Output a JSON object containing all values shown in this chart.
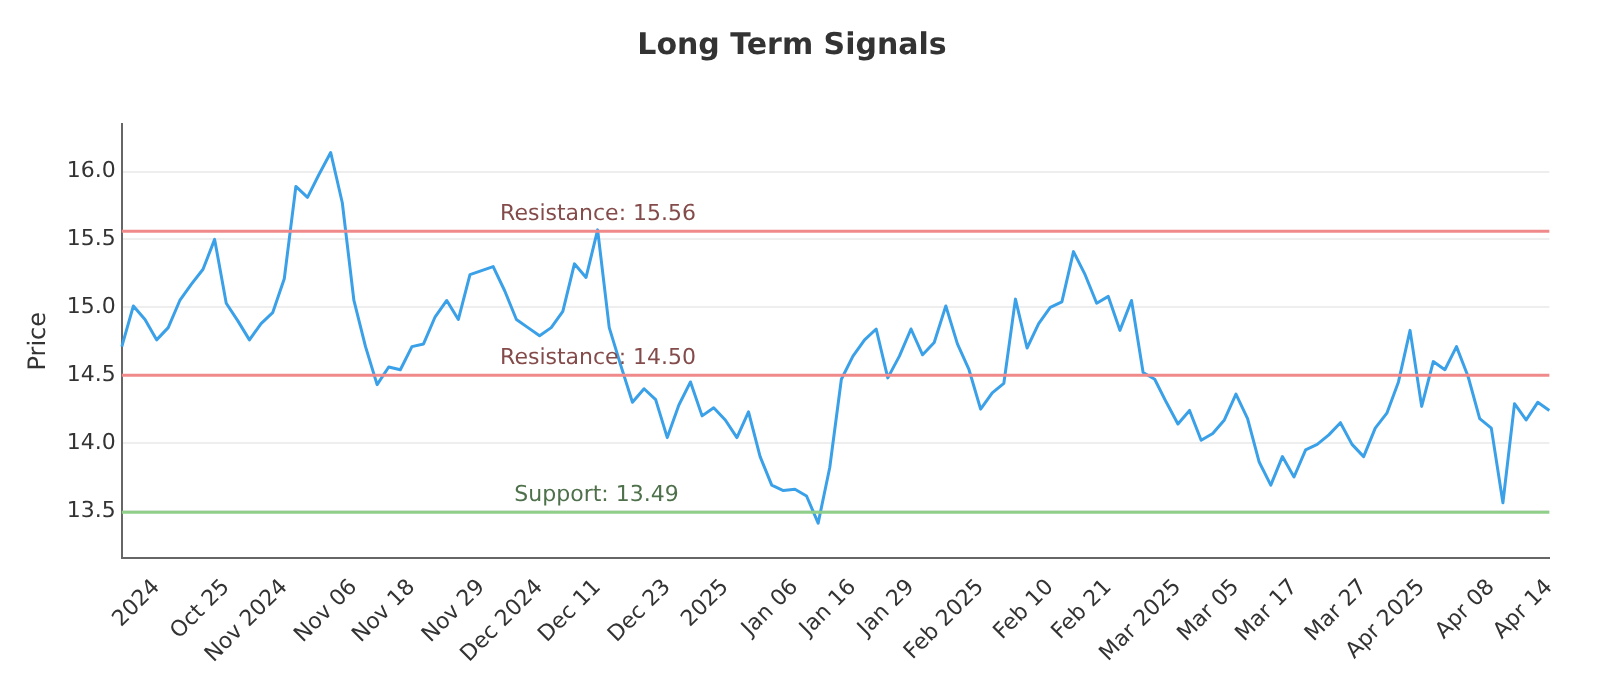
{
  "chart_data": {
    "type": "line",
    "title": "Long Term Signals",
    "ylabel": "Price",
    "categories": [
      null,
      null,
      null,
      "2024",
      null,
      null,
      null,
      null,
      null,
      "Oct 25",
      null,
      null,
      null,
      null,
      "Nov 2024",
      null,
      null,
      null,
      null,
      null,
      "Nov 06",
      null,
      null,
      null,
      null,
      "Nov 18",
      null,
      null,
      null,
      null,
      null,
      "Nov 29",
      null,
      null,
      null,
      null,
      "Dec 2024",
      null,
      null,
      null,
      null,
      "Dec 11",
      null,
      null,
      null,
      null,
      null,
      "Dec 23",
      null,
      null,
      null,
      null,
      "2025",
      null,
      null,
      null,
      null,
      null,
      "Jan 06",
      null,
      null,
      null,
      null,
      "Jan 16",
      null,
      null,
      null,
      null,
      "Jan 29",
      null,
      null,
      null,
      null,
      null,
      "Feb 2025",
      null,
      null,
      null,
      null,
      null,
      "Feb 10",
      null,
      null,
      null,
      null,
      "Feb 21",
      null,
      null,
      null,
      null,
      null,
      "Mar 2025",
      null,
      null,
      null,
      null,
      "Mar 05",
      null,
      null,
      null,
      null,
      "Mar 17",
      null,
      null,
      null,
      null,
      null,
      "Mar 27",
      null,
      null,
      null,
      null,
      "Apr 2025",
      null,
      null,
      null,
      null,
      null,
      "Apr 08",
      null,
      null,
      null,
      null,
      "Apr 14"
    ],
    "series": [
      {
        "color": "#3aa0e8",
        "values": [
          14.71,
          15.01,
          14.91,
          14.76,
          14.85,
          15.05,
          15.17,
          15.28,
          15.5,
          15.03,
          14.9,
          14.76,
          14.88,
          14.96,
          15.21,
          15.89,
          15.81,
          15.98,
          16.14,
          15.77,
          15.05,
          14.71,
          14.43,
          14.56,
          14.54,
          14.71,
          14.73,
          14.93,
          15.05,
          14.91,
          15.24,
          15.27,
          15.3,
          15.12,
          14.91,
          14.85,
          14.79,
          14.85,
          14.97,
          15.32,
          15.22,
          15.57,
          14.85,
          14.57,
          14.3,
          14.4,
          14.32,
          14.04,
          14.28,
          14.45,
          14.2,
          14.26,
          14.17,
          14.04,
          14.23,
          13.9,
          13.69,
          13.65,
          13.66,
          13.61,
          13.41,
          13.82,
          14.47,
          14.64,
          14.76,
          14.84,
          14.48,
          14.64,
          14.84,
          14.65,
          14.74,
          15.01,
          14.73,
          14.54,
          14.25,
          14.37,
          14.44,
          15.06,
          14.7,
          14.88,
          15.0,
          15.04,
          15.41,
          15.24,
          15.03,
          15.08,
          14.83,
          15.05,
          14.52,
          14.47,
          14.3,
          14.14,
          14.24,
          14.02,
          14.07,
          14.17,
          14.36,
          14.18,
          13.86,
          13.69,
          13.9,
          13.75,
          13.95,
          13.99,
          14.06,
          14.15,
          13.99,
          13.9,
          14.11,
          14.22,
          14.45,
          14.83,
          14.27,
          14.6,
          14.54,
          14.71,
          14.49,
          14.18,
          14.11,
          13.56,
          14.29,
          14.17,
          14.3,
          14.24
        ]
      }
    ],
    "ylim": [
      13.15,
      16.35
    ],
    "yticks": [
      {
        "value": 13.5,
        "label": "13.5"
      },
      {
        "value": 14,
        "label": "14.0"
      },
      {
        "value": 14.5,
        "label": "14.5"
      },
      {
        "value": 15,
        "label": "15.0"
      },
      {
        "value": 15.5,
        "label": "15.5"
      },
      {
        "value": 16,
        "label": "16.0"
      }
    ],
    "ref_lines": [
      {
        "axis": "y",
        "value": 15.56,
        "label": "Resistance: 15.56",
        "color": "#f08a8a"
      },
      {
        "axis": "y",
        "value": 14.5,
        "label": "Resistance: 14.50",
        "color": "#f08a8a"
      },
      {
        "axis": "y",
        "value": 13.49,
        "label": "Support: 13.49",
        "color": "#8fcf8a"
      }
    ],
    "grid": "y",
    "legend": false,
    "marker": "none",
    "line_style": "solid"
  }
}
